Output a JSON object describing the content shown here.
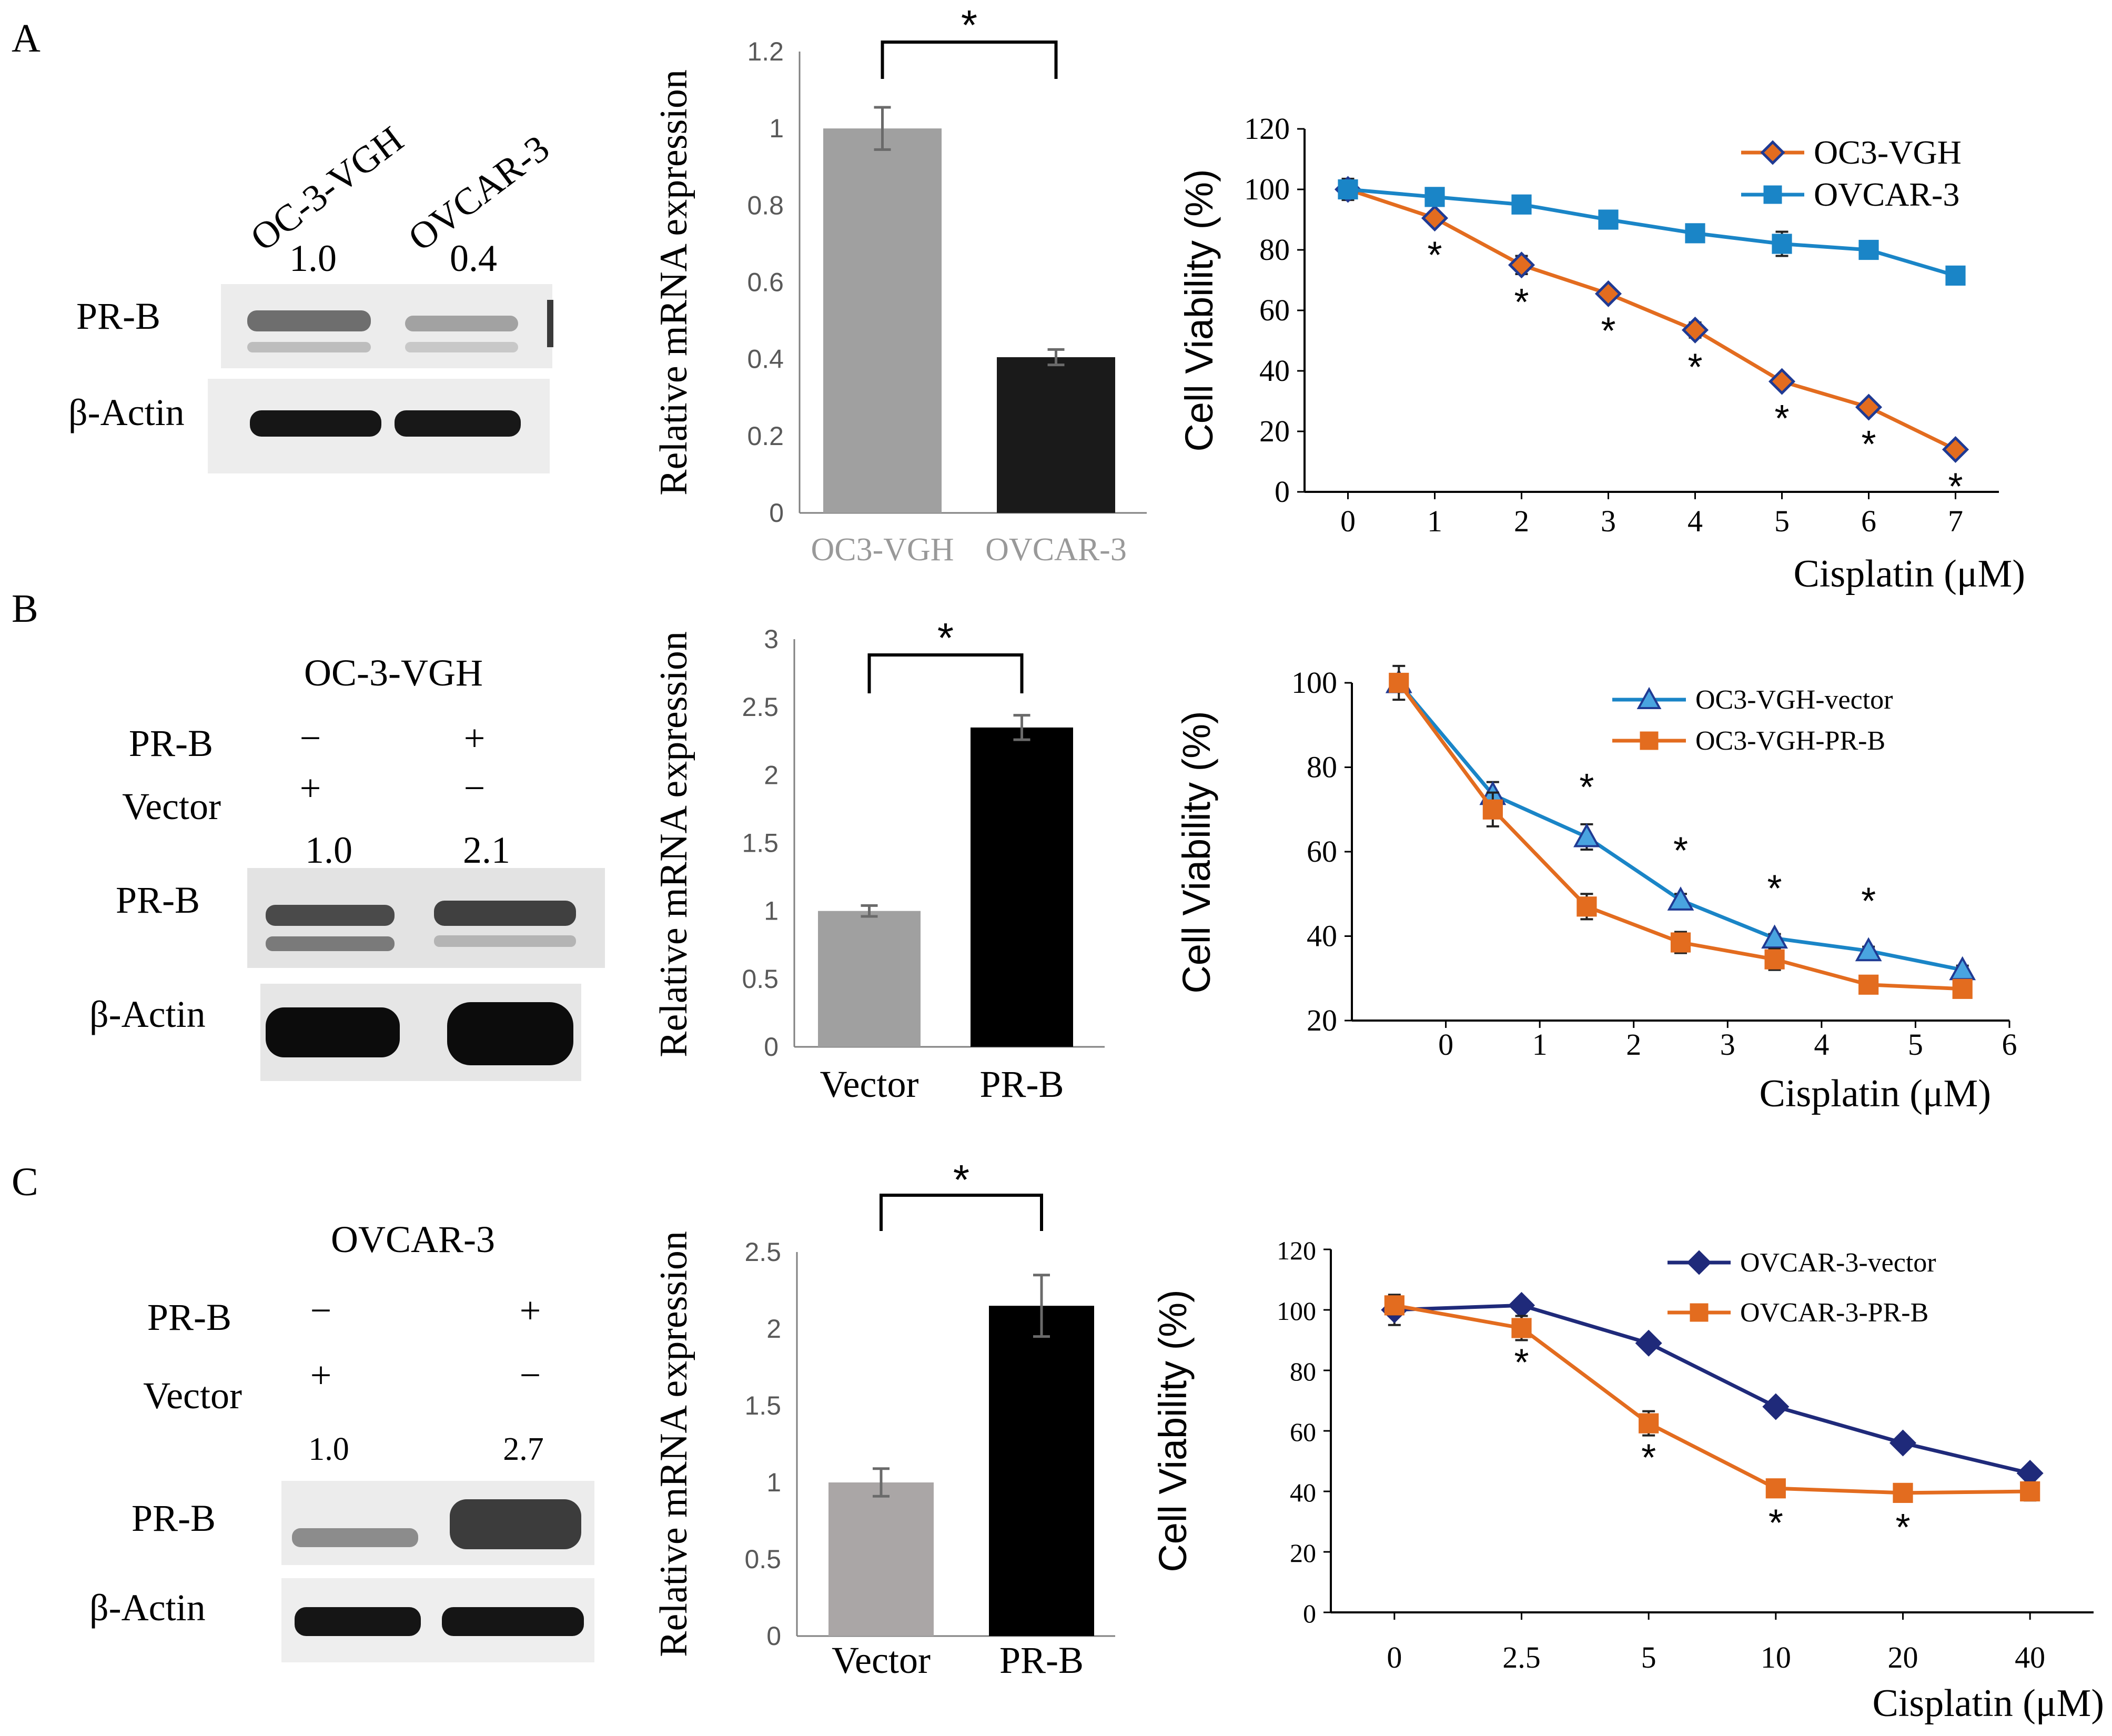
{
  "panels": [
    {
      "letter": "A",
      "blot": {
        "header": "",
        "lane_labels": [
          "OC-3-VGH",
          "OVCAR-3"
        ],
        "rows": [],
        "quant": [
          "1.0",
          "0.4"
        ],
        "pr_label": "PR-B",
        "actin_label": "β-Actin"
      },
      "bar": {
        "ylabel": "Relative mRNA expression",
        "ymin": 0,
        "ymax": 1.2,
        "step": 0.2,
        "ticks": [
          "0",
          "0.2",
          "0.4",
          "0.6",
          "0.8",
          "1",
          "1.2"
        ],
        "categories": [
          "OC3-VGH",
          "OVCAR-3"
        ],
        "values": [
          1.0,
          0.405
        ],
        "errors": [
          0.055,
          0.02
        ],
        "colors": [
          "#a0a0a0",
          "#1a1a1a"
        ],
        "label_colors": [
          "#999999",
          "#999999"
        ],
        "significance": "*"
      }
    },
    {
      "letter": "B",
      "blot": {
        "header": "OC-3-VGH",
        "lane_labels": [],
        "rows": [
          {
            "label": "PR-B",
            "lane1": "−",
            "lane2": "+"
          },
          {
            "label": "Vector",
            "lane1": "+",
            "lane2": "−"
          }
        ],
        "quant": [
          "1.0",
          "2.1"
        ],
        "pr_label": "PR-B",
        "actin_label": "β-Actin"
      },
      "bar": {
        "ylabel": "Relative mRNA expression",
        "ymin": 0,
        "ymax": 3,
        "step": 0.5,
        "ticks": [
          "0",
          "0.5",
          "1",
          "1.5",
          "2",
          "2.5",
          "3"
        ],
        "categories": [
          "Vector",
          "PR-B"
        ],
        "values": [
          1.0,
          2.35
        ],
        "errors": [
          0.04,
          0.09
        ],
        "colors": [
          "#a0a0a0",
          "#000000"
        ],
        "label_colors": [
          "#000000",
          "#000000"
        ],
        "significance": "*"
      }
    },
    {
      "letter": "C",
      "blot": {
        "header": "OVCAR-3",
        "lane_labels": [],
        "rows": [
          {
            "label": "PR-B",
            "lane1": "−",
            "lane2": "+"
          },
          {
            "label": "Vector",
            "lane1": "+",
            "lane2": "−"
          }
        ],
        "quant": [
          "1.0",
          "2.7"
        ],
        "pr_label": "PR-B",
        "actin_label": "β-Actin"
      },
      "bar": {
        "ylabel": "Relative mRNA expression",
        "ymin": 0,
        "ymax": 2.5,
        "step": 0.5,
        "ticks": [
          "0",
          "0.5",
          "1",
          "1.5",
          "2",
          "2.5"
        ],
        "categories": [
          "Vector",
          "PR-B"
        ],
        "values": [
          1.0,
          2.15
        ],
        "errors": [
          0.09,
          0.2
        ],
        "colors": [
          "#aaa6a6",
          "#000000"
        ],
        "label_colors": [
          "#000000",
          "#000000"
        ],
        "significance": "*"
      }
    }
  ],
  "chart_data": [
    {
      "type": "bar",
      "panel": "A",
      "title": "",
      "xlabel": "",
      "ylabel": "Relative mRNA expression",
      "categories": [
        "OC3-VGH",
        "OVCAR-3"
      ],
      "values": [
        1.0,
        0.405
      ],
      "errors": [
        0.055,
        0.02
      ],
      "ylim": [
        0,
        1.2
      ],
      "significance": "*"
    },
    {
      "type": "line",
      "panel": "A",
      "xlabel": "Cisplatin (μM)",
      "ylabel": "Cell Viability (%)",
      "xlim": [
        -0.5,
        7.5
      ],
      "ylim": [
        0,
        120
      ],
      "ystep": 20,
      "xticks": [
        0,
        1,
        2,
        3,
        4,
        5,
        6,
        7
      ],
      "xtick_labels": [
        "0",
        "1",
        "2",
        "3",
        "4",
        "5",
        "6",
        "7"
      ],
      "yticks": [
        0,
        20,
        40,
        60,
        80,
        100,
        120
      ],
      "ytick_labels": [
        "0",
        "20",
        "40",
        "60",
        "80",
        "100",
        "120"
      ],
      "legend_position": "top-right",
      "series": [
        {
          "name": "OC3-VGH",
          "color": "#e36c1f",
          "marker": "diamond",
          "marker_fill": "#e36c1f",
          "marker_stroke": "#1f3a93",
          "x": [
            0,
            1,
            2,
            3,
            4,
            5,
            6,
            7
          ],
          "y": [
            100,
            90.5,
            75,
            65.5,
            53.5,
            36.5,
            28,
            14
          ],
          "err": [
            3.5,
            1.5,
            3,
            1.5,
            2.5,
            1.5,
            1.5,
            1.5
          ]
        },
        {
          "name": "OVCAR-3",
          "color": "#1a85c7",
          "marker": "square",
          "marker_fill": "#1a85c7",
          "marker_stroke": "#1a85c7",
          "x": [
            0,
            1,
            2,
            3,
            4,
            5,
            6,
            7
          ],
          "y": [
            100,
            97.5,
            95,
            90,
            85.5,
            82,
            80,
            71.5
          ],
          "err": [
            2.5,
            1,
            1,
            1,
            1,
            4,
            1,
            1
          ]
        }
      ],
      "star_x": [
        1,
        2,
        3,
        4,
        5,
        6,
        7
      ],
      "star": "*"
    },
    {
      "type": "bar",
      "panel": "B",
      "title": "",
      "xlabel": "",
      "ylabel": "Relative mRNA expression",
      "categories": [
        "Vector",
        "PR-B"
      ],
      "values": [
        1.0,
        2.35
      ],
      "errors": [
        0.04,
        0.09
      ],
      "ylim": [
        0,
        3
      ],
      "significance": "*"
    },
    {
      "type": "line",
      "panel": "B",
      "xlabel": "Cisplatin (μM)",
      "ylabel": "Cell Viability (%)",
      "xlim": [
        -1,
        6
      ],
      "ylim": [
        20,
        100
      ],
      "ystep": 20,
      "xticks": [
        0,
        1,
        2,
        3,
        4,
        5,
        6
      ],
      "xtick_labels": [
        "0",
        "1",
        "2",
        "3",
        "4",
        "5",
        "6"
      ],
      "yticks": [
        20,
        40,
        60,
        80,
        100
      ],
      "ytick_labels": [
        "20",
        "40",
        "60",
        "80",
        "100"
      ],
      "legend_position": "top-right",
      "series": [
        {
          "name": "OC3-VGH-vector",
          "color": "#1a85c7",
          "marker": "triangle",
          "marker_fill": "#49a4e0",
          "marker_stroke": "#1f3a93",
          "x": [
            -0.5,
            0.5,
            1.5,
            2.5,
            3.5,
            4.5,
            5.5
          ],
          "y": [
            100,
            73.5,
            63.5,
            48.5,
            39.5,
            36.5,
            32
          ],
          "err": [
            2,
            3,
            3,
            1.5,
            1,
            1,
            1
          ]
        },
        {
          "name": "OC3-VGH-PR-B",
          "color": "#e36c1f",
          "marker": "square",
          "marker_fill": "#e36c1f",
          "marker_stroke": "#e36c1f",
          "x": [
            -0.5,
            0.5,
            1.5,
            2.5,
            3.5,
            4.5,
            5.5
          ],
          "y": [
            100,
            70,
            47,
            38.5,
            34.5,
            28.5,
            27.5
          ],
          "err": [
            4,
            4,
            3,
            2.5,
            2.5,
            2,
            2
          ]
        }
      ],
      "star_x": [
        1.5,
        2.5,
        3.5,
        4.5
      ],
      "star": "*"
    },
    {
      "type": "bar",
      "panel": "C",
      "title": "",
      "xlabel": "",
      "ylabel": "Relative mRNA expression",
      "categories": [
        "Vector",
        "PR-B"
      ],
      "values": [
        1.0,
        2.15
      ],
      "errors": [
        0.09,
        0.2
      ],
      "ylim": [
        0,
        2.5
      ],
      "significance": "*"
    },
    {
      "type": "line",
      "panel": "C",
      "xlabel": "Cisplatin (μM)",
      "ylabel": "Cell Viability (%)",
      "xlim": [
        -0.5,
        5.5
      ],
      "ylim": [
        0,
        120
      ],
      "ystep": 20,
      "xticks": [
        0,
        1,
        2,
        3,
        4,
        5
      ],
      "xtick_labels": [
        "0",
        "2.5",
        "5",
        "10",
        "20",
        "40"
      ],
      "yticks": [
        0,
        20,
        40,
        60,
        80,
        100,
        120
      ],
      "ytick_labels": [
        "0",
        "20",
        "40",
        "60",
        "80",
        "100",
        "120"
      ],
      "legend_position": "top-right",
      "series": [
        {
          "name": "OVCAR-3-vector",
          "color": "#1f2a7a",
          "marker": "diamond",
          "marker_fill": "#1f2a7a",
          "marker_stroke": "#1f2a7a",
          "x": [
            0,
            1,
            2,
            3,
            4,
            5
          ],
          "y": [
            100,
            101.5,
            89,
            68,
            56,
            46
          ],
          "err": [
            5,
            2,
            2,
            1,
            1,
            1
          ]
        },
        {
          "name": "OVCAR-3-PR-B",
          "color": "#e36c1f",
          "marker": "square",
          "marker_fill": "#e36c1f",
          "marker_stroke": "#e36c1f",
          "x": [
            0,
            1,
            2,
            3,
            4,
            5
          ],
          "y": [
            101.5,
            94,
            62.5,
            41,
            39.5,
            40
          ],
          "err": [
            3,
            4,
            4,
            2.5,
            2.5,
            3
          ]
        }
      ],
      "star_x": [
        1,
        2,
        3,
        4
      ],
      "star": "*"
    }
  ]
}
